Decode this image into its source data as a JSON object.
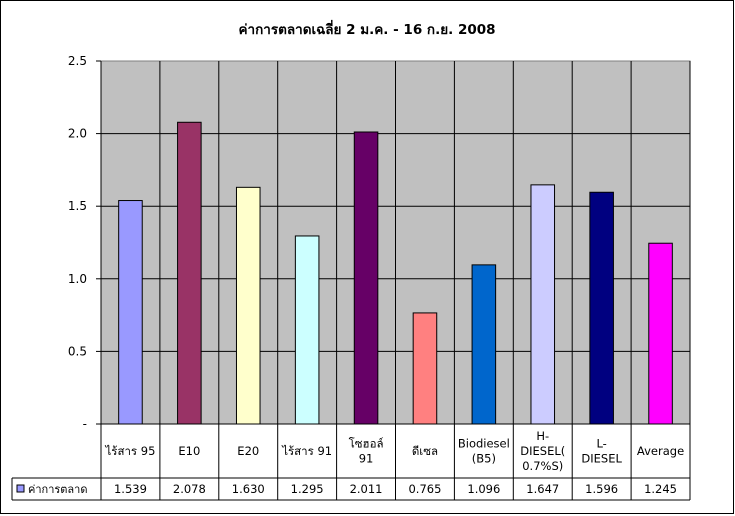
{
  "chart_data": {
    "type": "bar",
    "title": "ค่าการตลาดเฉลี่ย 2 ม.ค. - 16 ก.ย. 2008",
    "categories": [
      [
        "ไร้สาร 95"
      ],
      [
        "E10"
      ],
      [
        "E20"
      ],
      [
        "ไร้สาร 91"
      ],
      [
        "โซฮอล์",
        "91"
      ],
      [
        "ดีเซล"
      ],
      [
        "Biodiesel",
        "(B5)"
      ],
      [
        "H-",
        "DIESEL(",
        "0.7%S)"
      ],
      [
        "L-",
        "DIESEL"
      ],
      [
        "Average"
      ]
    ],
    "series": [
      {
        "name": "ค่าการตลาด",
        "values": [
          1.539,
          2.078,
          1.63,
          1.295,
          2.011,
          0.765,
          1.096,
          1.647,
          1.596,
          1.245
        ],
        "value_labels": [
          "1.539",
          "2.078",
          "1.630",
          "1.295",
          "2.011",
          "0.765",
          "1.096",
          "1.647",
          "1.596",
          "1.245"
        ]
      }
    ],
    "bar_colors": [
      "#9999ff",
      "#993366",
      "#ffffcc",
      "#ccffff",
      "#660066",
      "#ff8080",
      "#0066cc",
      "#ccccff",
      "#000080",
      "#ff00ff"
    ],
    "legend_color": "#9999ff",
    "plot_background": "#c0c0c0",
    "ylim": [
      0,
      2.5
    ],
    "y_ticks": [
      {
        "value": 2.5,
        "label": "2.5"
      },
      {
        "value": 2.0,
        "label": "2.0"
      },
      {
        "value": 1.5,
        "label": "1.5"
      },
      {
        "value": 1.0,
        "label": "1.0"
      },
      {
        "value": 0.5,
        "label": "0.5"
      },
      {
        "value": 0,
        "label": "-"
      }
    ],
    "grid": true,
    "data_table": true,
    "xlabel": "",
    "ylabel": ""
  }
}
